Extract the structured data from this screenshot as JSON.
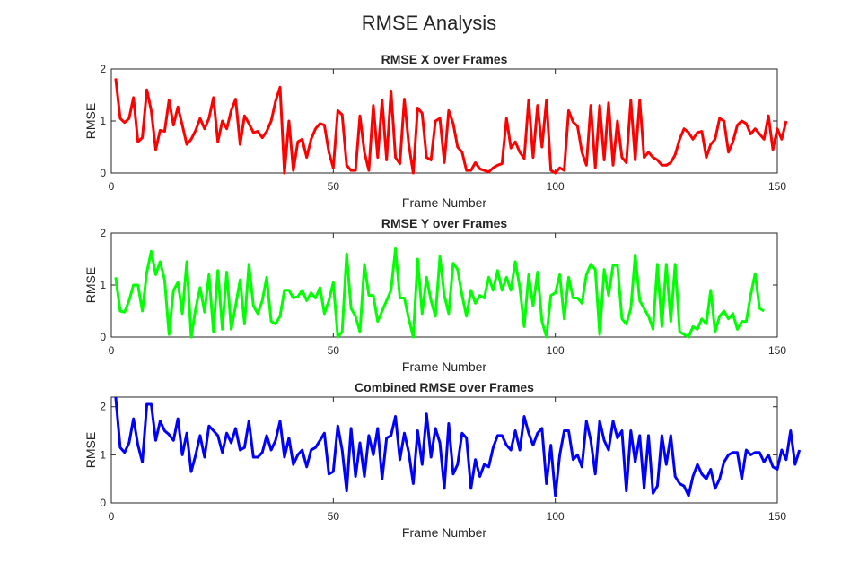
{
  "figure_title": "RMSE Analysis",
  "chart_data": [
    {
      "type": "line",
      "title": "RMSE X over Frames",
      "xlabel": "Frame Number",
      "ylabel": "RMSE",
      "xlim": [
        0,
        150
      ],
      "ylim": [
        0,
        2
      ],
      "xticks": [
        0,
        50,
        100,
        150
      ],
      "yticks": [
        0,
        1,
        2
      ],
      "grid": false,
      "color": "#ff0000",
      "series": [
        {
          "x_start": 1,
          "values": [
            1.82,
            1.05,
            0.97,
            1.05,
            1.45,
            0.6,
            0.68,
            1.6,
            1.2,
            0.45,
            0.82,
            0.8,
            1.4,
            0.92,
            1.27,
            0.92,
            0.55,
            0.65,
            0.82,
            1.05,
            0.85,
            1.05,
            1.45,
            0.6,
            1.0,
            0.85,
            1.2,
            1.42,
            0.55,
            1.1,
            0.95,
            0.78,
            0.8,
            0.68,
            0.8,
            1.0,
            1.38,
            1.65,
            0.0,
            1.0,
            0.05,
            0.6,
            0.65,
            0.3,
            0.65,
            0.85,
            0.95,
            0.92,
            0.4,
            0.1,
            1.2,
            1.12,
            0.15,
            0.05,
            0.05,
            1.1,
            0.4,
            0.05,
            1.3,
            0.3,
            1.4,
            0.25,
            1.58,
            0.3,
            0.18,
            1.42,
            0.55,
            0.0,
            1.25,
            1.15,
            0.3,
            0.25,
            1.0,
            1.05,
            0.2,
            1.2,
            0.95,
            0.5,
            0.4,
            0.05,
            0.05,
            0.2,
            0.08,
            0.05,
            0.02,
            0.1,
            0.15,
            0.18,
            1.05,
            0.48,
            0.6,
            0.4,
            0.28,
            1.4,
            0.3,
            1.3,
            0.5,
            1.4,
            0.05,
            0.0,
            0.1,
            0.05,
            1.2,
            0.98,
            0.9,
            0.4,
            0.15,
            1.3,
            0.1,
            1.3,
            0.25,
            1.35,
            0.15,
            1.0,
            0.3,
            0.2,
            1.4,
            0.25,
            1.4,
            0.3,
            0.4,
            0.3,
            0.25,
            0.15,
            0.15,
            0.2,
            0.35,
            0.65,
            0.85,
            0.78,
            0.65,
            0.78,
            0.8,
            0.3,
            0.55,
            0.65,
            1.05,
            1.0,
            0.4,
            0.6,
            0.92,
            1.0,
            0.95,
            0.75,
            0.85,
            0.75,
            0.65,
            1.1,
            0.45,
            0.85,
            0.65,
            1.0
          ]
        }
      ]
    },
    {
      "type": "line",
      "title": "RMSE Y over Frames",
      "xlabel": "Frame Number",
      "ylabel": "RMSE",
      "xlim": [
        0,
        150
      ],
      "ylim": [
        0,
        2
      ],
      "xticks": [
        0,
        50,
        100,
        150
      ],
      "yticks": [
        0,
        1,
        2
      ],
      "grid": false,
      "color": "#00ff00",
      "series": [
        {
          "x_start": 1,
          "values": [
            1.15,
            0.5,
            0.48,
            0.7,
            1.0,
            1.0,
            0.5,
            1.25,
            1.65,
            1.2,
            1.45,
            1.1,
            0.05,
            0.9,
            1.05,
            0.45,
            1.45,
            0.0,
            0.55,
            0.95,
            0.48,
            1.2,
            0.1,
            1.28,
            0.15,
            1.25,
            0.15,
            0.6,
            1.1,
            0.25,
            1.4,
            0.6,
            0.45,
            0.7,
            1.15,
            0.3,
            0.25,
            0.4,
            0.9,
            0.9,
            0.75,
            0.78,
            0.9,
            0.7,
            0.85,
            0.75,
            0.95,
            0.45,
            0.7,
            1.05,
            0.0,
            0.1,
            1.6,
            0.55,
            0.4,
            0.1,
            1.4,
            0.8,
            0.8,
            0.3,
            0.5,
            0.7,
            0.9,
            1.7,
            0.75,
            0.75,
            0.35,
            0.0,
            1.5,
            0.45,
            1.15,
            0.7,
            0.4,
            1.55,
            0.8,
            0.45,
            1.42,
            1.3,
            0.8,
            0.4,
            0.9,
            0.65,
            0.8,
            0.75,
            1.15,
            0.9,
            1.28,
            0.9,
            1.15,
            0.9,
            1.45,
            0.95,
            0.2,
            1.2,
            0.6,
            1.25,
            0.3,
            0.0,
            0.8,
            0.85,
            1.2,
            0.35,
            1.15,
            0.75,
            0.75,
            0.65,
            1.2,
            1.4,
            1.3,
            0.05,
            1.3,
            0.8,
            1.38,
            1.38,
            0.35,
            0.25,
            0.55,
            1.58,
            0.7,
            0.55,
            0.4,
            0.15,
            1.4,
            0.2,
            1.4,
            0.3,
            1.4,
            0.1,
            0.05,
            0.0,
            0.2,
            0.15,
            0.35,
            0.25,
            0.9,
            0.1,
            0.4,
            0.5,
            0.35,
            0.45,
            0.15,
            0.3,
            0.3,
            0.8,
            1.22,
            0.55,
            0.5
          ]
        }
      ]
    },
    {
      "type": "line",
      "title": "Combined RMSE over Frames",
      "xlabel": "Frame Number",
      "ylabel": "RMSE",
      "xlim": [
        0,
        150
      ],
      "ylim": [
        0,
        2.2
      ],
      "xticks": [
        0,
        50,
        100,
        150
      ],
      "yticks": [
        0,
        1,
        2
      ],
      "grid": false,
      "color": "#0000ff",
      "series": [
        {
          "x_start": 1,
          "values": [
            2.2,
            1.15,
            1.05,
            1.25,
            1.75,
            1.2,
            0.85,
            2.05,
            2.05,
            1.3,
            1.7,
            1.5,
            1.42,
            1.3,
            1.75,
            1.0,
            1.45,
            0.65,
            1.0,
            1.4,
            0.95,
            1.6,
            1.5,
            1.4,
            1.05,
            1.45,
            1.25,
            1.55,
            1.1,
            1.15,
            1.7,
            0.95,
            0.95,
            1.05,
            1.4,
            1.1,
            1.3,
            1.7,
            0.95,
            1.35,
            0.8,
            1.0,
            1.1,
            0.75,
            1.1,
            1.15,
            1.3,
            1.45,
            0.6,
            0.65,
            1.6,
            1.1,
            0.25,
            1.55,
            0.55,
            1.25,
            0.55,
            1.4,
            1.0,
            1.55,
            0.5,
            1.35,
            1.4,
            1.8,
            0.9,
            1.45,
            1.05,
            0.4,
            1.5,
            0.8,
            1.85,
            0.95,
            1.55,
            1.25,
            0.3,
            1.65,
            0.6,
            0.8,
            1.45,
            1.35,
            0.3,
            0.9,
            0.55,
            0.8,
            0.75,
            1.15,
            1.4,
            1.4,
            1.2,
            1.1,
            1.5,
            1.1,
            1.8,
            1.45,
            1.2,
            1.45,
            1.55,
            0.4,
            1.2,
            0.15,
            1.0,
            1.5,
            1.5,
            0.9,
            1.0,
            0.75,
            1.7,
            1.3,
            0.6,
            1.7,
            1.3,
            1.1,
            1.7,
            1.35,
            1.5,
            0.25,
            1.5,
            0.85,
            1.4,
            0.3,
            1.4,
            0.2,
            0.35,
            1.4,
            0.8,
            1.4,
            0.55,
            0.4,
            0.35,
            0.15,
            0.55,
            0.8,
            0.6,
            0.5,
            0.7,
            0.3,
            0.5,
            0.85,
            1.0,
            1.05,
            1.05,
            0.5,
            1.1,
            1.0,
            1.05,
            1.05,
            0.85,
            1.0,
            0.75,
            0.7,
            1.1,
            0.9,
            1.5,
            0.8,
            1.1
          ]
        }
      ]
    }
  ]
}
